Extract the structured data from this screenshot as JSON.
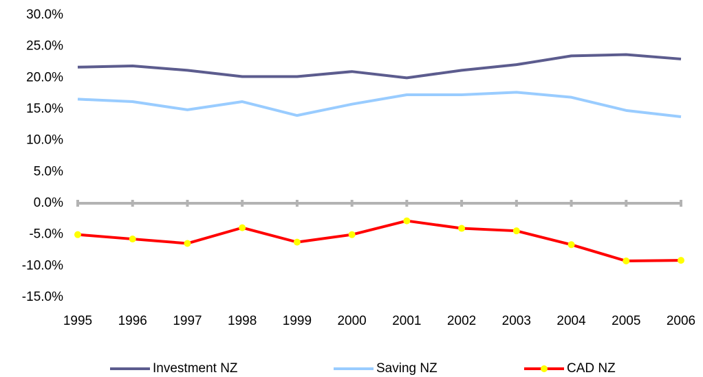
{
  "chart_data": {
    "type": "line",
    "x": [
      1995,
      1996,
      1997,
      1998,
      1999,
      2000,
      2001,
      2002,
      2003,
      2004,
      2005,
      2006
    ],
    "xlim": [
      1995,
      2006
    ],
    "xticks": [
      1995,
      1996,
      1997,
      1998,
      1999,
      2000,
      2001,
      2002,
      2003,
      2004,
      2005,
      2006
    ],
    "ylim": [
      -15,
      30
    ],
    "yticks": [
      {
        "value": -15,
        "label": "-15.0%"
      },
      {
        "value": -10,
        "label": "-10.0%"
      },
      {
        "value": -5,
        "label": "-5.0%"
      },
      {
        "value": 0,
        "label": "0.0%"
      },
      {
        "value": 5,
        "label": "5.0%"
      },
      {
        "value": 10,
        "label": "10.0%"
      },
      {
        "value": 15,
        "label": "15.0%"
      },
      {
        "value": 20,
        "label": "20.0%"
      },
      {
        "value": 25,
        "label": "25.0%"
      },
      {
        "value": 30,
        "label": "30.0%"
      }
    ],
    "grid": false,
    "legend": "bottom",
    "series": [
      {
        "name": "Investment NZ",
        "color": "#5c5c8e",
        "marker": false,
        "values": [
          21.7,
          21.9,
          21.2,
          20.2,
          20.2,
          21.0,
          20.0,
          21.2,
          22.1,
          23.5,
          23.7,
          23.0
        ]
      },
      {
        "name": "Saving NZ",
        "color": "#99ccff",
        "marker": false,
        "values": [
          16.6,
          16.2,
          14.9,
          16.2,
          14.0,
          15.8,
          17.3,
          17.3,
          17.7,
          16.9,
          14.8,
          13.8
        ]
      },
      {
        "name": "CAD NZ",
        "color": "#ff0000",
        "marker": true,
        "marker_color": "#ffff00",
        "values": [
          -5.0,
          -5.7,
          -6.4,
          -3.9,
          -6.2,
          -5.0,
          -2.8,
          -4.0,
          -4.4,
          -6.6,
          -9.2,
          -9.1
        ]
      }
    ]
  }
}
